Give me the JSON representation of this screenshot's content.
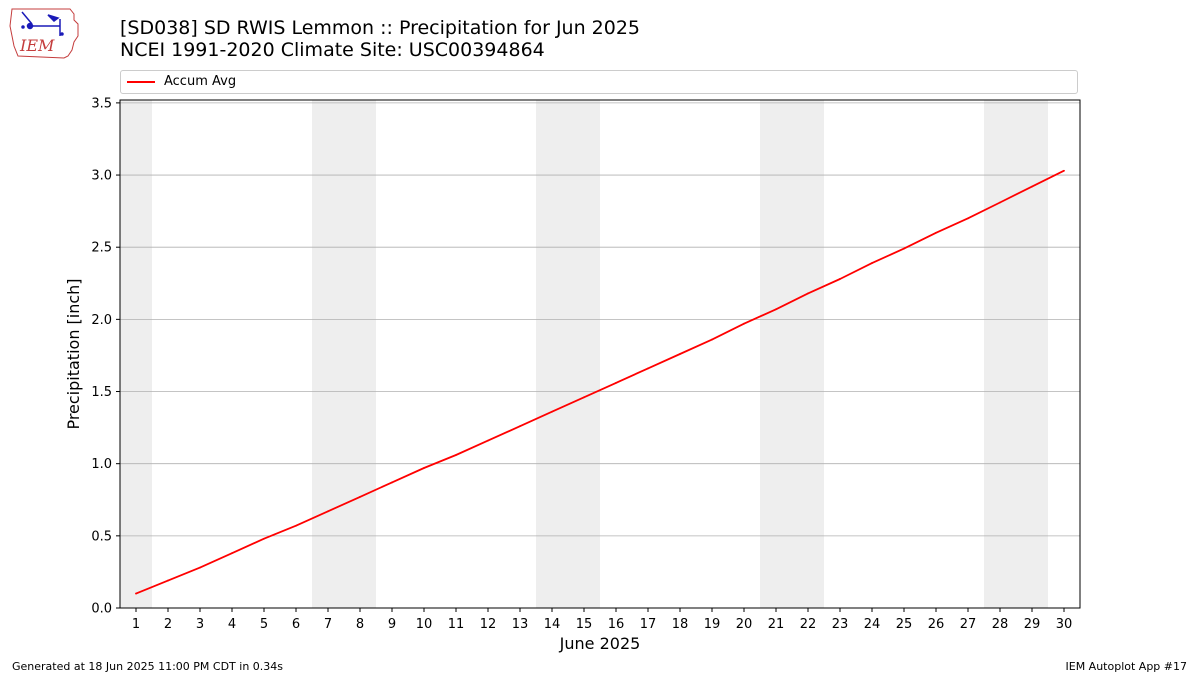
{
  "header": {
    "title_line1": "[SD038] SD RWIS Lemmon :: Precipitation for Jun 2025",
    "title_line2": "NCEI 1991-2020 Climate Site: USC00394864"
  },
  "logo": {
    "text": "IEM"
  },
  "footer": {
    "generated": "Generated at 18 Jun 2025 11:00 PM CDT in 0.34s",
    "app": "IEM Autoplot App #17"
  },
  "colors": {
    "series": "#ff0000",
    "weekend_band": "#eeeeee",
    "grid": "#b0b0b0"
  },
  "chart_data": {
    "type": "line",
    "title": "[SD038] SD RWIS Lemmon :: Precipitation for Jun 2025",
    "subtitle": "NCEI 1991-2020 Climate Site: USC00394864",
    "xlabel": "June 2025",
    "ylabel": "Precipitation [inch]",
    "legend_position": "top",
    "xlim": [
      0.5,
      30.5
    ],
    "ylim": [
      0,
      3.52
    ],
    "x_ticks": [
      1,
      2,
      3,
      4,
      5,
      6,
      7,
      8,
      9,
      10,
      11,
      12,
      13,
      14,
      15,
      16,
      17,
      18,
      19,
      20,
      21,
      22,
      23,
      24,
      25,
      26,
      27,
      28,
      29,
      30
    ],
    "y_ticks": [
      "0.0",
      "0.5",
      "1.0",
      "1.5",
      "2.0",
      "2.5",
      "3.0",
      "3.5"
    ],
    "grid": "horizontal",
    "weekend_bands": [
      [
        0.5,
        1.5
      ],
      [
        6.5,
        8.5
      ],
      [
        13.5,
        15.5
      ],
      [
        20.5,
        22.5
      ],
      [
        27.5,
        29.5
      ]
    ],
    "series": [
      {
        "name": "Accum Avg",
        "color": "#ff0000",
        "x": [
          1,
          2,
          3,
          4,
          5,
          6,
          7,
          8,
          9,
          10,
          11,
          12,
          13,
          14,
          15,
          16,
          17,
          18,
          19,
          20,
          21,
          22,
          23,
          24,
          25,
          26,
          27,
          28,
          29,
          30
        ],
        "values": [
          0.1,
          0.19,
          0.28,
          0.38,
          0.48,
          0.57,
          0.67,
          0.77,
          0.87,
          0.97,
          1.06,
          1.16,
          1.26,
          1.36,
          1.46,
          1.56,
          1.66,
          1.76,
          1.86,
          1.97,
          2.07,
          2.18,
          2.28,
          2.39,
          2.49,
          2.6,
          2.7,
          2.81,
          2.92,
          3.03
        ]
      }
    ]
  }
}
